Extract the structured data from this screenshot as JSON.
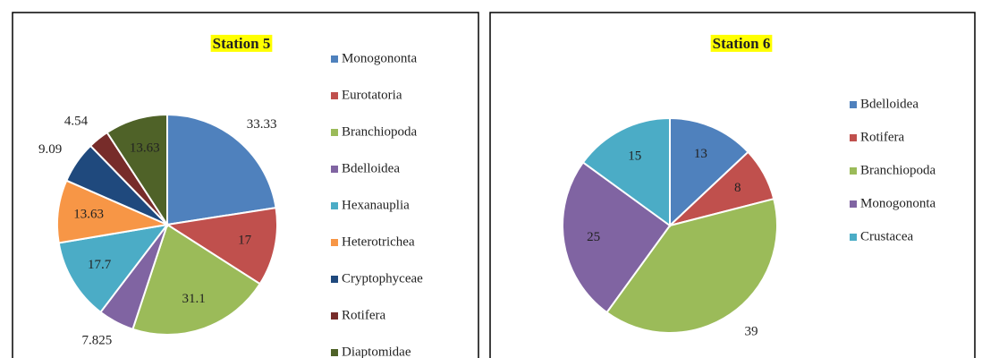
{
  "chart_data": [
    {
      "type": "pie",
      "title": "Station 5",
      "categories": [
        "Monogononta",
        "Eurotatoria",
        "Branchiopoda",
        "Bdelloidea",
        "Hexanauplia",
        "Heterotrichea",
        "Cryptophyceae",
        "Rotifera",
        "Diaptomidae"
      ],
      "values": [
        33.33,
        17,
        31.1,
        7.825,
        17.7,
        13.63,
        9.09,
        4.54,
        13.63
      ],
      "colors": [
        "#4f81bd",
        "#c0504d",
        "#9bbb59",
        "#8064a2",
        "#4bacc6",
        "#f79646",
        "#1f497d",
        "#772c2a",
        "#4f6228"
      ]
    },
    {
      "type": "pie",
      "title": "Station 6",
      "categories": [
        "Bdelloidea",
        "Rotifera",
        "Branchiopoda",
        "Monogononta",
        "Crustacea"
      ],
      "values": [
        13,
        8,
        39,
        25,
        15
      ],
      "colors": [
        "#4f81bd",
        "#c0504d",
        "#9bbb59",
        "#8064a2",
        "#4bacc6"
      ]
    }
  ]
}
